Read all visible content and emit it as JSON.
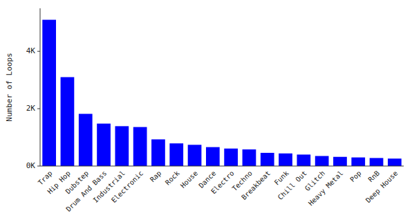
{
  "chart_data": {
    "type": "bar",
    "categories": [
      "Trap",
      "Hip Hop",
      "Dubstep",
      "Drum And Bass",
      "Industrial",
      "Electronic",
      "Rap",
      "Rock",
      "House",
      "Dance",
      "Electro",
      "Techno",
      "Breakbeat",
      "Funk",
      "Chill Out",
      "Glitch",
      "Heavy Metal",
      "Pop",
      "RnB",
      "Deep House"
    ],
    "values": [
      5100,
      3100,
      1820,
      1480,
      1390,
      1360,
      930,
      790,
      740,
      660,
      610,
      580,
      460,
      440,
      400,
      350,
      320,
      300,
      280,
      260
    ],
    "color": "#0000ff",
    "ylabel": "Number of Loops",
    "ylim": [
      0,
      5500
    ],
    "yticks": [
      {
        "value": 0,
        "label": "0K"
      },
      {
        "value": 2000,
        "label": "2K"
      },
      {
        "value": 4000,
        "label": "4K"
      }
    ]
  }
}
